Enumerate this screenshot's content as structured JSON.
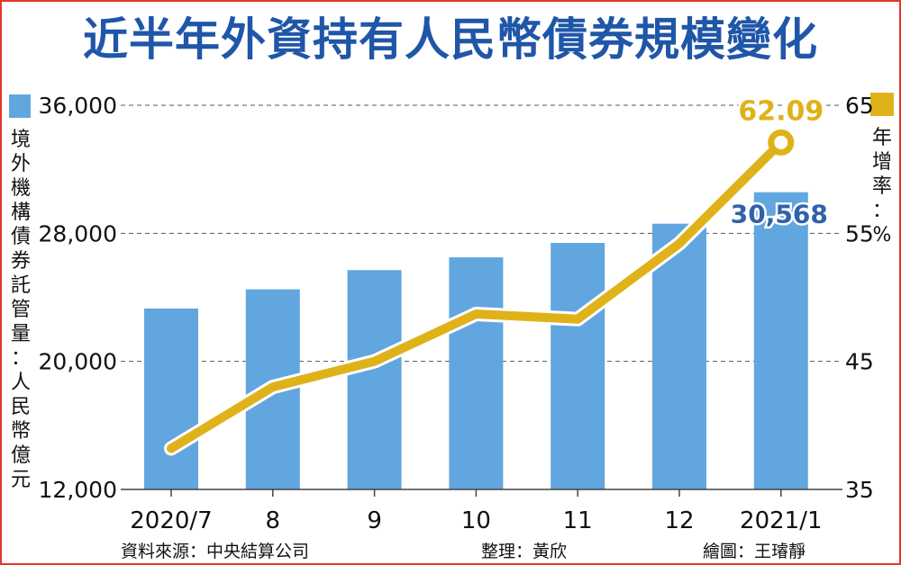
{
  "title": "近半年外資持有人民幣債券規模變化",
  "left_axis_label": "境外機構債券託管量：人民幣億元",
  "right_axis_label": "年增率：%",
  "footer": {
    "source": "資料來源：中央結算公司",
    "editor": "整理：黃欣",
    "artist": "繪圖：王璿靜"
  },
  "colors": {
    "bar": "#62a6df",
    "line": "#e0b21a",
    "title": "#1f56a8",
    "last_bar_label": "#2f62a8",
    "last_line_label": "#e0b21a",
    "frame": "#e5372c"
  },
  "chart_data": {
    "type": "bar",
    "categories": [
      "2020/7",
      "8",
      "9",
      "10",
      "11",
      "12",
      "2021/1"
    ],
    "series": [
      {
        "values": [
          23300,
          24500,
          25700,
          26500,
          27400,
          28600,
          30568
        ],
        "axis": "left",
        "kind": "bar"
      },
      {
        "values": [
          38.2,
          43.0,
          45.0,
          48.7,
          48.3,
          54.2,
          62.09
        ],
        "axis": "right",
        "kind": "line"
      }
    ],
    "y_left": {
      "range": [
        12000,
        36000
      ],
      "ticks": [
        "12,000",
        "20,000",
        "28,000",
        "36,000"
      ],
      "tick_values": [
        12000,
        20000,
        28000,
        36000
      ]
    },
    "y_right": {
      "range": [
        35,
        65
      ],
      "ticks": [
        "35",
        "45",
        "55",
        "65"
      ],
      "tick_values": [
        35,
        45,
        55,
        65
      ]
    },
    "data_labels": {
      "last_bar": "30,568",
      "last_line": "62.09"
    },
    "grid": "horizontal dashed",
    "legend": "axis markers (top-left blue square, top-right yellow square)"
  }
}
